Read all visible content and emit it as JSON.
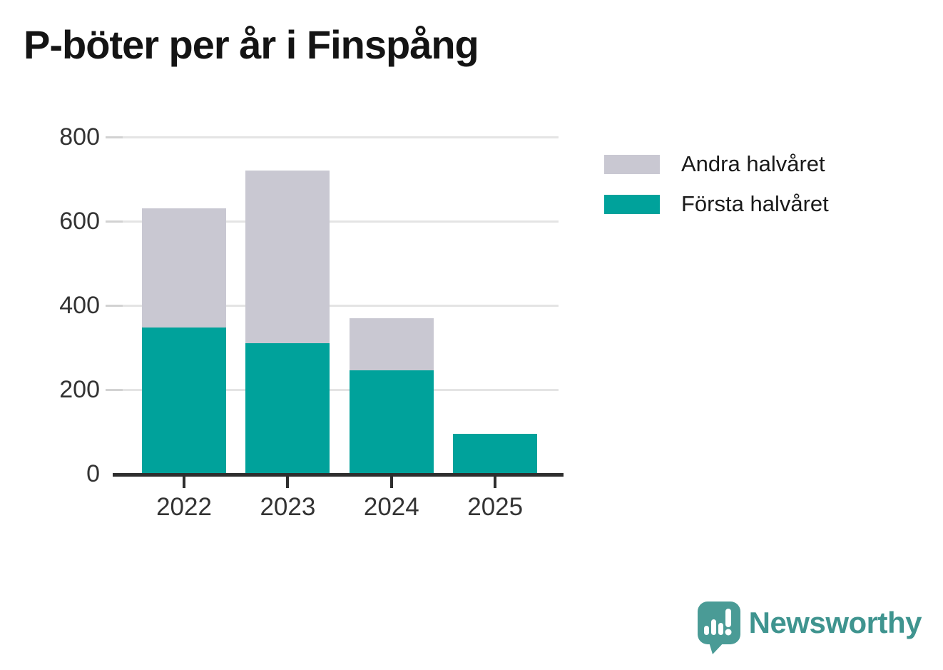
{
  "header": {
    "title": "P-böter per år i Finspång"
  },
  "colors": {
    "first_half_teal": "#00a29b",
    "second_half_gray": "#c9c8d2",
    "axis_dark": "#2e2e2e",
    "gridline_gray": "#e4e4e4",
    "tick_label_gray": "#333333",
    "title_black": "#141414",
    "logo_teal": "#3f948f",
    "logo_icon_teal": "#4a9b96"
  },
  "legend": {
    "items": [
      {
        "label": "Andra halvåret",
        "color": "#c9c8d2",
        "series_key": "second"
      },
      {
        "label": "Första halvåret",
        "color": "#00a29b",
        "series_key": "first"
      }
    ]
  },
  "chart_data": {
    "type": "bar",
    "stacked": true,
    "title": "P-böter per år i Finspång",
    "categories": [
      "2022",
      "2023",
      "2024",
      "2025"
    ],
    "series": [
      {
        "name": "Första halvåret",
        "key": "first",
        "color": "#00a29b",
        "values": [
          348,
          310,
          245,
          95
        ]
      },
      {
        "name": "Andra halvåret",
        "key": "second",
        "color": "#c9c8d2",
        "values": [
          282,
          410,
          125,
          0
        ]
      }
    ],
    "totals": [
      630,
      720,
      370,
      95
    ],
    "xlabel": "",
    "ylabel": "",
    "ylim": [
      0,
      800
    ],
    "yticks": [
      0,
      200,
      400,
      600,
      800
    ],
    "grid": "horizontal",
    "legend_position": "right"
  },
  "branding": {
    "name": "Newsworthy"
  }
}
